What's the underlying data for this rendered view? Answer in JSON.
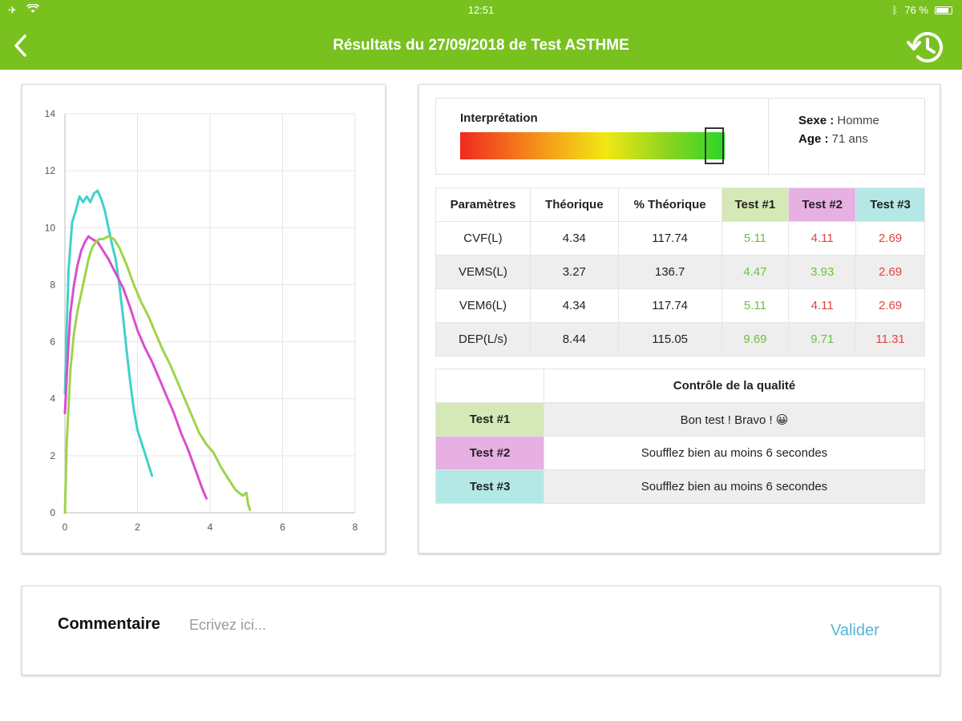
{
  "status_bar": {
    "time": "12:51",
    "battery": "76 %"
  },
  "header": {
    "title": "Résultats du  27/09/2018  de Test ASTHME",
    "back_icon": "chevron-left-icon",
    "history_icon": "history-icon"
  },
  "colors": {
    "brand_green": "#78c11f",
    "test1": "#9ed44a",
    "test2": "#d94ed0",
    "test3": "#41d1c9",
    "good_value": "#6ac23b",
    "bad_value": "#e0443e",
    "link": "#55b4d8"
  },
  "chart_data": {
    "type": "line",
    "xlim": [
      0,
      8
    ],
    "ylim": [
      0,
      14
    ],
    "x_ticks": [
      "0",
      "2",
      "4",
      "6",
      "8"
    ],
    "y_ticks": [
      "0",
      "2",
      "4",
      "6",
      "8",
      "10",
      "12",
      "14"
    ],
    "grid": true,
    "series": [
      {
        "color": "#41d1c9",
        "points": [
          [
            0,
            4.2
          ],
          [
            0.05,
            6.5
          ],
          [
            0.1,
            8.5
          ],
          [
            0.2,
            10.2
          ],
          [
            0.3,
            10.6
          ],
          [
            0.4,
            11.1
          ],
          [
            0.5,
            10.9
          ],
          [
            0.6,
            11.1
          ],
          [
            0.7,
            10.9
          ],
          [
            0.8,
            11.2
          ],
          [
            0.9,
            11.3
          ],
          [
            1.0,
            11.0
          ],
          [
            1.1,
            10.6
          ],
          [
            1.2,
            10.0
          ],
          [
            1.3,
            9.4
          ],
          [
            1.4,
            8.9
          ],
          [
            1.5,
            8.0
          ],
          [
            1.6,
            6.9
          ],
          [
            1.7,
            5.7
          ],
          [
            1.8,
            4.6
          ],
          [
            1.9,
            3.6
          ],
          [
            2.0,
            2.9
          ],
          [
            2.1,
            2.5
          ],
          [
            2.2,
            2.1
          ],
          [
            2.4,
            1.3
          ]
        ]
      },
      {
        "color": "#d94ed0",
        "points": [
          [
            0,
            3.5
          ],
          [
            0.08,
            5.5
          ],
          [
            0.15,
            7.0
          ],
          [
            0.25,
            8.0
          ],
          [
            0.35,
            8.7
          ],
          [
            0.45,
            9.2
          ],
          [
            0.55,
            9.5
          ],
          [
            0.65,
            9.7
          ],
          [
            0.75,
            9.6
          ],
          [
            0.9,
            9.5
          ],
          [
            1.0,
            9.3
          ],
          [
            1.2,
            8.9
          ],
          [
            1.4,
            8.4
          ],
          [
            1.6,
            7.9
          ],
          [
            1.8,
            7.2
          ],
          [
            2.0,
            6.4
          ],
          [
            2.2,
            5.8
          ],
          [
            2.4,
            5.3
          ],
          [
            2.6,
            4.7
          ],
          [
            2.8,
            4.1
          ],
          [
            3.0,
            3.5
          ],
          [
            3.2,
            2.8
          ],
          [
            3.4,
            2.2
          ],
          [
            3.6,
            1.5
          ],
          [
            3.8,
            0.8
          ],
          [
            3.9,
            0.5
          ]
        ]
      },
      {
        "color": "#9ed44a",
        "points": [
          [
            0,
            0
          ],
          [
            0.05,
            2.5
          ],
          [
            0.15,
            5.0
          ],
          [
            0.25,
            6.3
          ],
          [
            0.35,
            7.1
          ],
          [
            0.45,
            7.7
          ],
          [
            0.55,
            8.3
          ],
          [
            0.65,
            8.9
          ],
          [
            0.75,
            9.3
          ],
          [
            0.85,
            9.5
          ],
          [
            0.95,
            9.6
          ],
          [
            1.05,
            9.6
          ],
          [
            1.2,
            9.7
          ],
          [
            1.35,
            9.6
          ],
          [
            1.5,
            9.3
          ],
          [
            1.7,
            8.7
          ],
          [
            1.9,
            8.0
          ],
          [
            2.1,
            7.4
          ],
          [
            2.3,
            6.9
          ],
          [
            2.5,
            6.3
          ],
          [
            2.7,
            5.7
          ],
          [
            2.9,
            5.2
          ],
          [
            3.1,
            4.6
          ],
          [
            3.3,
            4.0
          ],
          [
            3.5,
            3.4
          ],
          [
            3.7,
            2.8
          ],
          [
            3.9,
            2.4
          ],
          [
            4.1,
            2.1
          ],
          [
            4.3,
            1.6
          ],
          [
            4.5,
            1.2
          ],
          [
            4.7,
            0.8
          ],
          [
            4.9,
            0.6
          ],
          [
            5.0,
            0.7
          ],
          [
            5.05,
            0.3
          ],
          [
            5.1,
            0.1
          ]
        ]
      }
    ]
  },
  "interpretation": {
    "label": "Interprétation",
    "level_percent": 96
  },
  "patient": {
    "sex_label": "Sexe :",
    "sex_value": "Homme",
    "age_label": "Age :",
    "age_value": "71 ans"
  },
  "params_table": {
    "headers": [
      "Paramètres",
      "Théorique",
      "% Théorique",
      "Test #1",
      "Test #2",
      "Test #3"
    ],
    "rows": [
      {
        "name": "CVF(L)",
        "theoretical": "4.34",
        "percent": "117.74",
        "t1": "5.11",
        "t2": "4.11",
        "t3": "2.69"
      },
      {
        "name": "VEMS(L)",
        "theoretical": "3.27",
        "percent": "136.7",
        "t1": "4.47",
        "t2": "3.93",
        "t3": "2.69"
      },
      {
        "name": "VEM6(L)",
        "theoretical": "4.34",
        "percent": "117.74",
        "t1": "5.11",
        "t2": "4.11",
        "t3": "2.69"
      },
      {
        "name": "DEP(L/s)",
        "theoretical": "8.44",
        "percent": "115.05",
        "t1": "9.69",
        "t2": "9.71",
        "t3": "11.31"
      }
    ]
  },
  "quality": {
    "header": "Contrôle de la qualité",
    "rows": [
      {
        "test": "Test #1",
        "message": "Bon test ! Bravo ! 😀"
      },
      {
        "test": "Test #2",
        "message": "Soufflez bien au moins 6 secondes"
      },
      {
        "test": "Test #3",
        "message": "Soufflez bien au moins 6 secondes"
      }
    ]
  },
  "comment": {
    "label": "Commentaire",
    "placeholder": "Ecrivez ici...",
    "value": "",
    "submit_label": "Valider"
  }
}
